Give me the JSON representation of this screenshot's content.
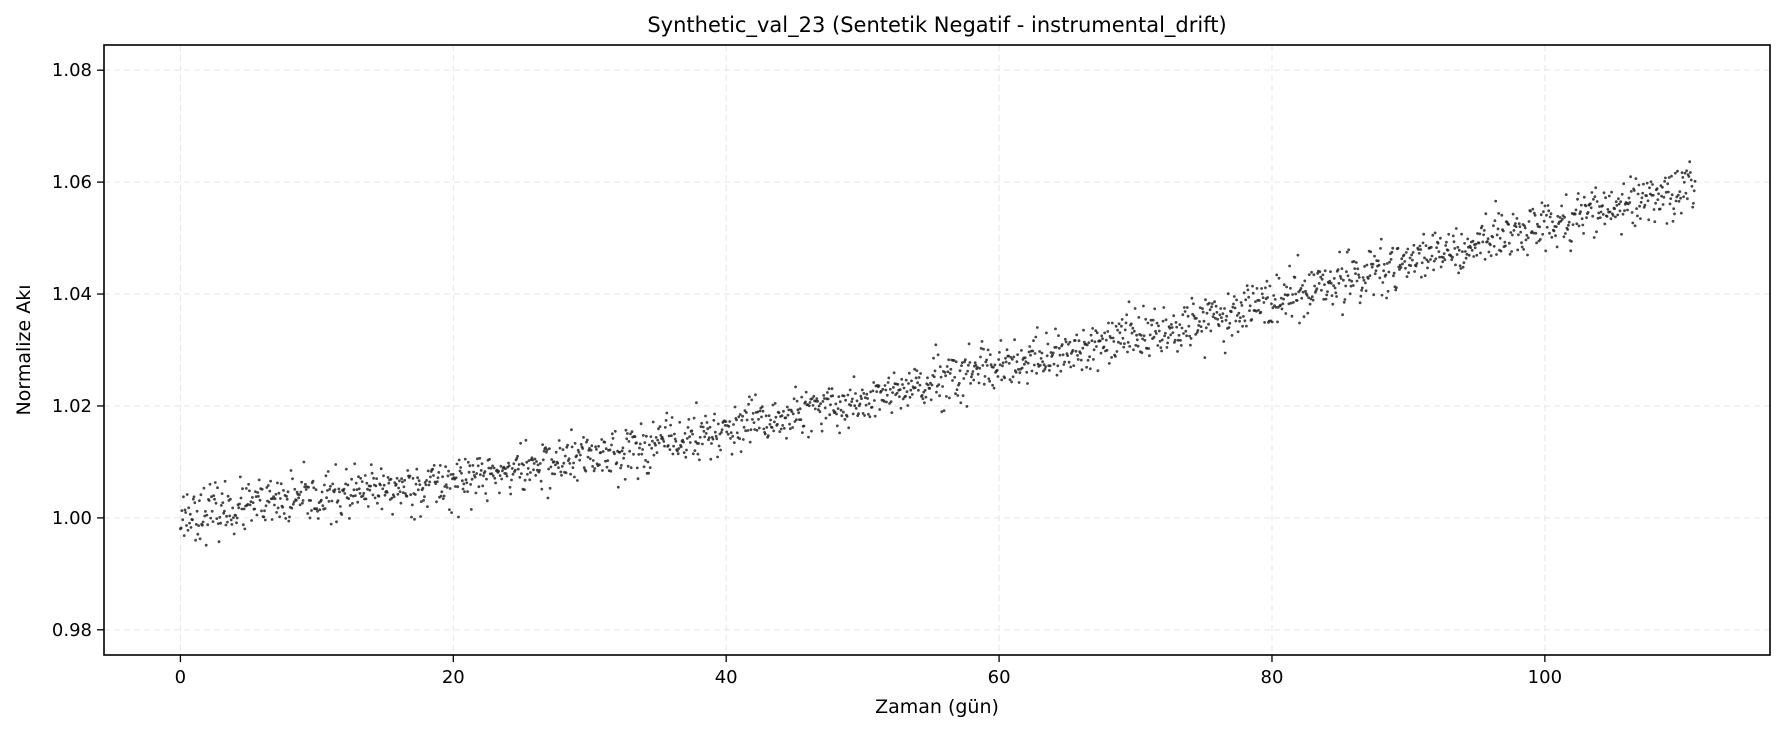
{
  "chart_data": {
    "type": "scatter",
    "title": "Synthetic_val_23 (Sentetik Negatif - instrumental_drift)",
    "xlabel": "Zaman (gün)",
    "ylabel": "Normalize Akı",
    "xlim": [
      -5.6,
      116.5
    ],
    "ylim": [
      0.9755,
      1.0845
    ],
    "xticks": [
      0,
      20,
      40,
      60,
      80,
      100
    ],
    "yticks": [
      0.98,
      1.0,
      1.02,
      1.04,
      1.06,
      1.08
    ],
    "xtick_labels": [
      "0",
      "20",
      "40",
      "60",
      "80",
      "100"
    ],
    "ytick_labels": [
      "0.98",
      "1.00",
      "1.02",
      "1.04",
      "1.06",
      "1.08"
    ],
    "grid": true,
    "point_color": "#262626",
    "series": [
      {
        "x_range": [
          0,
          111
        ],
        "n_points": 2000,
        "trend": {
          "x": [
            0,
            20,
            40,
            60,
            80,
            100,
            111
          ],
          "y": [
            1.0005,
            1.0065,
            1.0155,
            1.0265,
            1.0385,
            1.0525,
            1.0595
          ]
        },
        "scatter_sd": 0.0022
      }
    ]
  }
}
